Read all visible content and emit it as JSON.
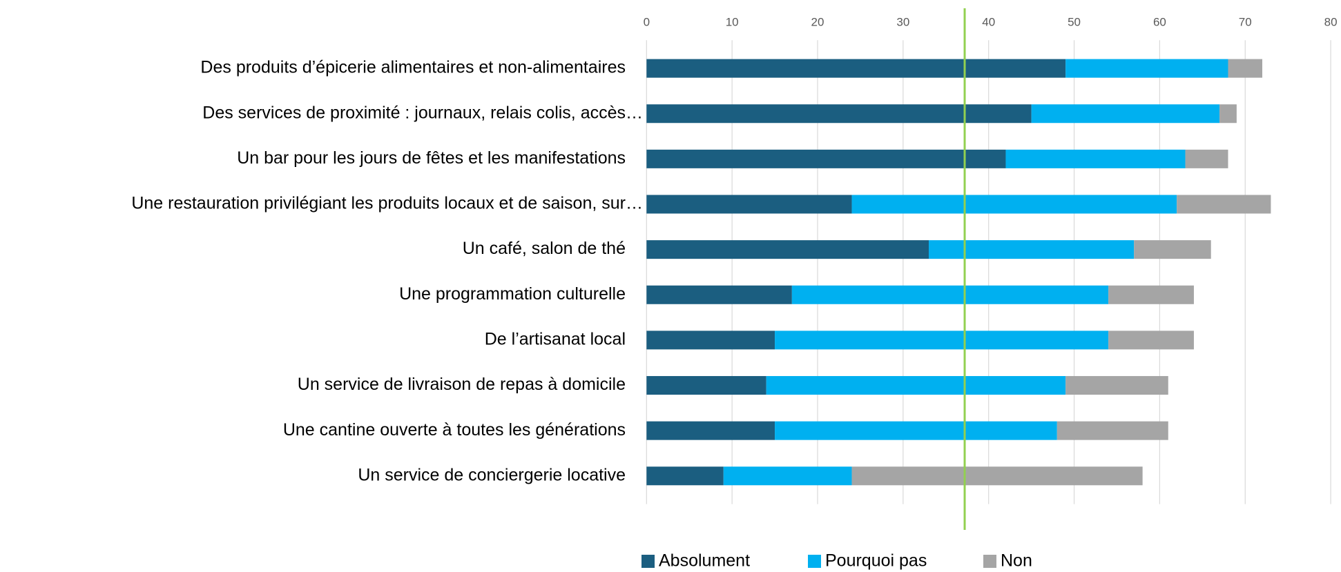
{
  "chart_data": {
    "type": "stacked_barh",
    "categories": [
      "Des produits d’épicerie alimentaires et non-alimentaires",
      "Des services de proximité : journaux, relais colis, accès…",
      "Un bar pour les jours de fêtes et les manifestations",
      "Une restauration privilégiant les produits locaux et de saison, sur…",
      "Un café, salon de thé",
      "Une programmation culturelle",
      "De l’artisanat local",
      "Un service de livraison de repas à domicile",
      "Une cantine ouverte à toutes les générations",
      "Un service de conciergerie locative"
    ],
    "series": [
      {
        "name": "Absolument",
        "color": "#1b5e80",
        "values": [
          49,
          45,
          42,
          24,
          33,
          17,
          15,
          14,
          15,
          9
        ]
      },
      {
        "name": "Pourquoi pas",
        "color": "#00b0f0",
        "values": [
          19,
          22,
          21,
          38,
          24,
          37,
          39,
          35,
          33,
          15
        ]
      },
      {
        "name": "Non",
        "color": "#a5a5a5",
        "values": [
          4,
          2,
          5,
          11,
          9,
          10,
          10,
          12,
          13,
          34
        ]
      }
    ],
    "xlim": [
      0,
      80
    ],
    "xticks": [
      0,
      10,
      20,
      30,
      40,
      50,
      60,
      70,
      80
    ],
    "grid": true,
    "reference_line": {
      "value": 37.2,
      "color": "#92d050"
    },
    "legend": "bottom"
  }
}
